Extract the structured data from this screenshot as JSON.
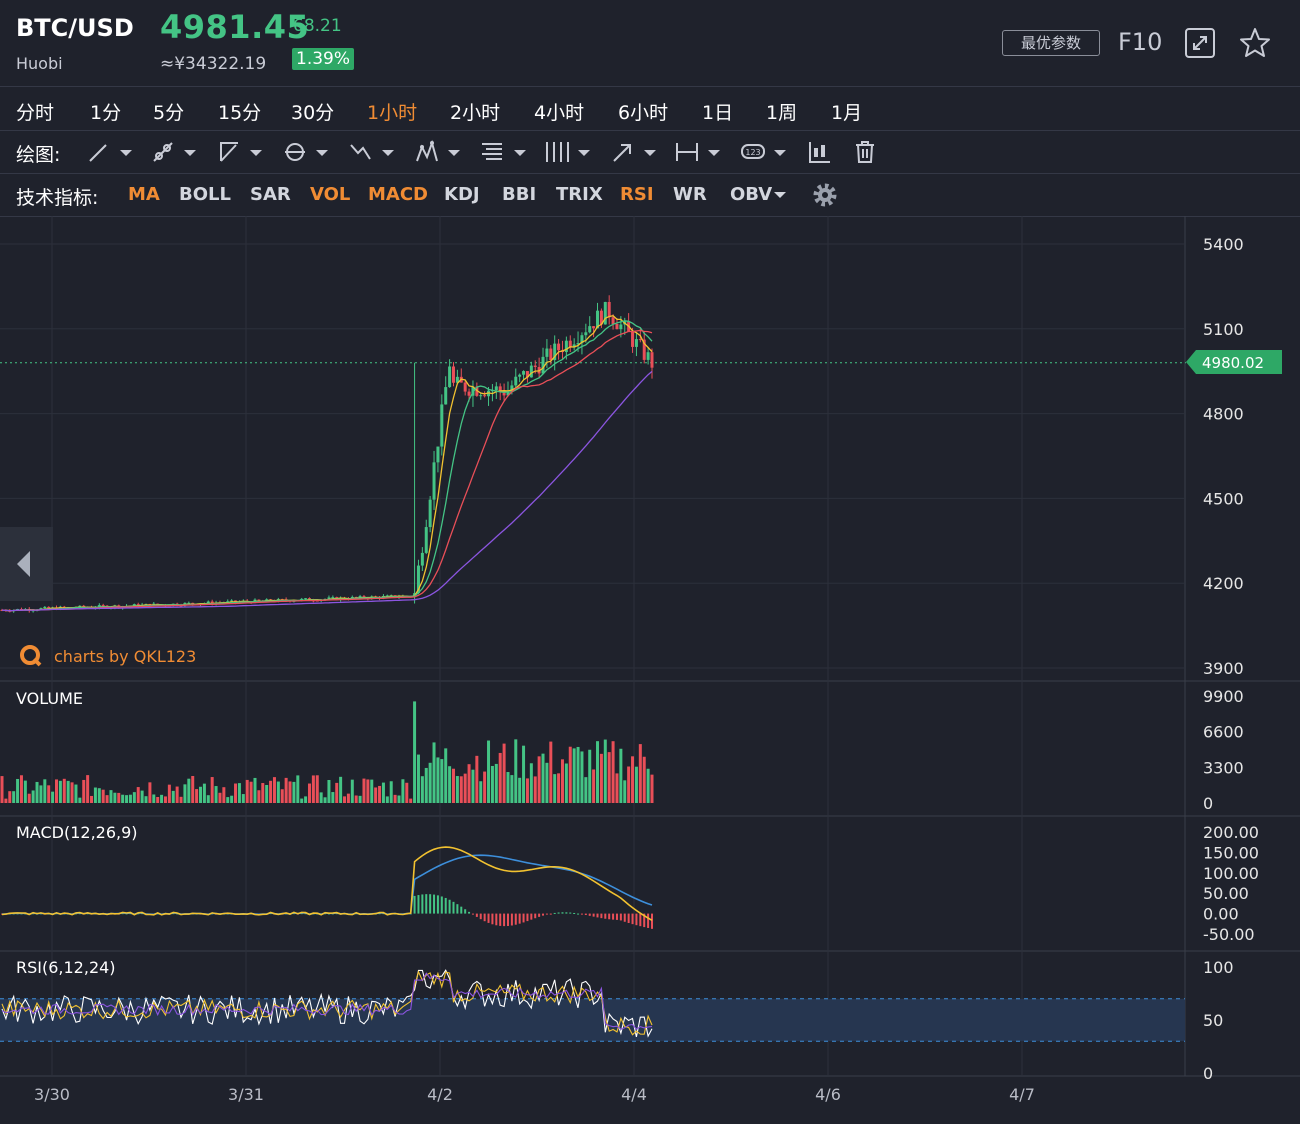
{
  "header": {
    "pair": "BTC/USD",
    "exchange": "Huobi",
    "price": "4981.45",
    "change": "68.21",
    "cny_price": "≈¥34322.19",
    "change_pct": "1.39%",
    "best_params_label": "最优参数",
    "f10_label": "F10"
  },
  "timeframes": [
    {
      "label": "分时",
      "active": false
    },
    {
      "label": "1分",
      "active": false
    },
    {
      "label": "5分",
      "active": false
    },
    {
      "label": "15分",
      "active": false
    },
    {
      "label": "30分",
      "active": false
    },
    {
      "label": "1小时",
      "active": true
    },
    {
      "label": "2小时",
      "active": false
    },
    {
      "label": "4小时",
      "active": false
    },
    {
      "label": "6小时",
      "active": false
    },
    {
      "label": "1日",
      "active": false
    },
    {
      "label": "1周",
      "active": false
    },
    {
      "label": "1月",
      "active": false
    }
  ],
  "drawing": {
    "label": "绘图:",
    "tools": [
      "line-tool-icon",
      "ray-tool-icon",
      "channel-tool-icon",
      "circle-tool-icon",
      "zigzag-tool-icon",
      "pattern-tool-icon",
      "fib-tool-icon",
      "gann-tool-icon",
      "arrow-tool-icon",
      "range-tool-icon",
      "label-tool-icon"
    ],
    "label_tool_text": "123"
  },
  "indicators": {
    "label": "技术指标:",
    "items": [
      {
        "label": "MA",
        "active": true
      },
      {
        "label": "BOLL",
        "active": false
      },
      {
        "label": "SAR",
        "active": false
      },
      {
        "label": "VOL",
        "active": true
      },
      {
        "label": "MACD",
        "active": true
      },
      {
        "label": "KDJ",
        "active": false
      },
      {
        "label": "BBI",
        "active": false
      },
      {
        "label": "TRIX",
        "active": false
      },
      {
        "label": "RSI",
        "active": true
      },
      {
        "label": "WR",
        "active": false
      },
      {
        "label": "OBV",
        "active": false
      }
    ]
  },
  "watermark": "charts by QKL123",
  "colors": {
    "up": "#44c485",
    "down": "#e94f58",
    "accent": "#f08c34",
    "current_price": "#2ea866"
  },
  "chart_data": [
    {
      "type": "candlestick",
      "title": "",
      "ylim": [
        3900,
        5400
      ],
      "yticks": [
        "5400",
        "5100",
        "4800",
        "4500",
        "4200",
        "3900"
      ],
      "xticks": [
        "3/30",
        "3/31",
        "4/2",
        "4/4",
        "4/6",
        "4/7"
      ],
      "current_price_label": "4980.02",
      "current_price": 4980.02,
      "trend_segments": [
        {
          "from_index": 0,
          "to_index": 105,
          "start": 4105,
          "end": 4155
        },
        {
          "from_index": 106,
          "to_index": 115,
          "start": 4160,
          "end": 4980
        },
        {
          "from_index": 116,
          "to_index": 130,
          "start": 4900,
          "end": 4880
        },
        {
          "from_index": 131,
          "to_index": 155,
          "start": 4900,
          "end": 5160
        },
        {
          "from_index": 156,
          "to_index": 167,
          "start": 5160,
          "end": 4980
        }
      ],
      "ma_series": [
        {
          "color": "#f2c230"
        },
        {
          "color": "#44c485"
        },
        {
          "color": "#e94f58"
        },
        {
          "color": "#8b55e0"
        }
      ]
    },
    {
      "type": "bar",
      "title": "VOLUME",
      "ylim": [
        0,
        9900
      ],
      "yticks": [
        "9900",
        "6600",
        "3300",
        "0"
      ],
      "approx_range": [
        400,
        9400
      ],
      "spike_value": 9400
    },
    {
      "type": "line",
      "title": "MACD(12,26,9)",
      "ylim": [
        -50,
        200
      ],
      "yticks": [
        "200.00",
        "150.00",
        "100.00",
        "50.00",
        "0.00",
        "-50.00"
      ],
      "peak_macd": 160,
      "peak_signal": 140
    },
    {
      "type": "line",
      "title": "RSI(6,12,24)",
      "ylim": [
        0,
        100
      ],
      "yticks": [
        "100",
        "50",
        "0"
      ],
      "bands": [
        30,
        70
      ]
    }
  ]
}
